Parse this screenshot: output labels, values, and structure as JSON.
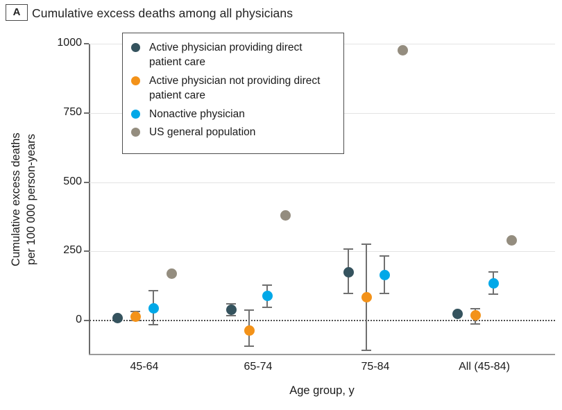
{
  "panel": {
    "label": "A",
    "title": "Cumulative excess deaths among all physicians"
  },
  "chart_data": {
    "type": "scatter",
    "title": "Cumulative excess deaths among all physicians",
    "xlabel": "Age group, y",
    "ylabel": "Cumulative excess deaths per 100 000 person-years",
    "ylabel_lines": [
      "Cumulative excess deaths",
      "per 100 000 person-years"
    ],
    "categories": [
      "45-64",
      "65-74",
      "75-84",
      "All (45-84)"
    ],
    "yticks": [
      0,
      250,
      500,
      750,
      1000
    ],
    "ylim": [
      -125,
      1000
    ],
    "grid": true,
    "zero_line": "dotted",
    "legend_position": "top-left-inside",
    "units": "excess deaths per 100 000 person-years",
    "series": [
      {
        "name": "Active physician providing direct patient care",
        "color": "#35535E",
        "values": [
          10,
          40,
          175,
          25
        ],
        "ci_low": [
          4,
          15,
          95,
          12
        ],
        "ci_high": [
          18,
          62,
          260,
          38
        ]
      },
      {
        "name": "Active physician not providing direct patient care",
        "color": "#F39219",
        "values": [
          15,
          -35,
          85,
          20
        ],
        "ci_low": [
          -3,
          -95,
          -110,
          -15
        ],
        "ci_high": [
          35,
          40,
          278,
          45
        ]
      },
      {
        "name": "Nonactive physician",
        "color": "#00A8E8",
        "values": [
          45,
          90,
          165,
          135
        ],
        "ci_low": [
          -18,
          45,
          95,
          93
        ],
        "ci_high": [
          110,
          130,
          235,
          178
        ]
      },
      {
        "name": "US general population",
        "color": "#948D7F",
        "values": [
          170,
          380,
          975,
          290
        ],
        "ci_low": [
          null,
          null,
          null,
          null
        ],
        "ci_high": [
          null,
          null,
          null,
          null
        ]
      }
    ],
    "style_colors": {
      "axis": "#6B6B6B",
      "grid": "#E3E3E3",
      "error_bar": "#707070",
      "text": "#1A1A1A"
    }
  }
}
